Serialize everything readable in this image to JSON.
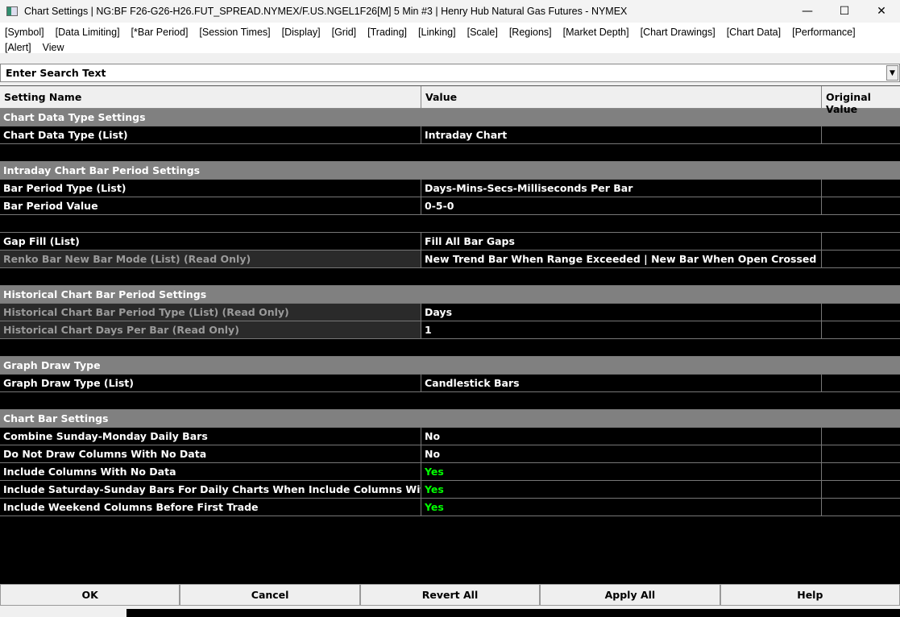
{
  "window": {
    "title": "Chart Settings | NG:BF F26-G26-H26.FUT_SPREAD.NYMEX/F.US.NGEL1F26[M]  5 Min  #3 | Henry Hub Natural Gas Futures - NYMEX",
    "minimize": "—",
    "maximize": "☐",
    "close": "✕"
  },
  "menu": [
    "[Symbol]",
    "[Data Limiting]",
    "[*Bar Period]",
    "[Session Times]",
    "[Display]",
    "[Grid]",
    "[Trading]",
    "[Linking]",
    "[Scale]",
    "[Regions]",
    "[Market Depth]",
    "[Chart Drawings]",
    "[Chart Data]",
    "[Performance]",
    "[Alert]",
    "View"
  ],
  "search": {
    "placeholder": "Enter Search Text",
    "dropdown": "▼"
  },
  "columns": {
    "name": "Setting Name",
    "value": "Value",
    "original": "Original Value"
  },
  "rows": [
    {
      "type": "section",
      "name": "Chart Data Type Settings"
    },
    {
      "type": "item",
      "name": "Chart Data Type (List)",
      "value": "Intraday Chart"
    },
    {
      "type": "blank"
    },
    {
      "type": "section",
      "name": "Intraday Chart Bar Period Settings"
    },
    {
      "type": "item",
      "name": "Bar Period Type (List)",
      "value": "Days-Mins-Secs-Milliseconds Per Bar"
    },
    {
      "type": "item",
      "name": "Bar Period Value",
      "value": "0-5-0"
    },
    {
      "type": "blank"
    },
    {
      "type": "item",
      "name": "Gap Fill (List)",
      "value": "Fill All Bar Gaps"
    },
    {
      "type": "readonly",
      "name": "Renko Bar New Bar Mode (List) (Read Only)",
      "value": "New Trend Bar When Range Exceeded | New Bar When Open Crossed"
    },
    {
      "type": "blank"
    },
    {
      "type": "section",
      "name": "Historical Chart Bar Period Settings"
    },
    {
      "type": "readonly",
      "name": "Historical Chart Bar Period Type (List) (Read Only)",
      "value": "Days"
    },
    {
      "type": "readonly",
      "name": "Historical Chart Days Per Bar (Read Only)",
      "value": "1"
    },
    {
      "type": "blank"
    },
    {
      "type": "section",
      "name": "Graph Draw Type"
    },
    {
      "type": "item",
      "name": "Graph Draw Type (List)",
      "value": "Candlestick Bars"
    },
    {
      "type": "blank"
    },
    {
      "type": "section",
      "name": "Chart Bar Settings"
    },
    {
      "type": "item",
      "name": "Combine Sunday-Monday Daily Bars",
      "value": "No"
    },
    {
      "type": "item",
      "name": "Do Not Draw Columns With No Data",
      "value": "No"
    },
    {
      "type": "item",
      "name": "Include Columns With No Data",
      "value": "Yes",
      "color": "#00ff00"
    },
    {
      "type": "item",
      "name": "Include Saturday-Sunday Bars For Daily Charts When Include Columns With No Data",
      "value": "Yes",
      "color": "#00ff00"
    },
    {
      "type": "item",
      "name": "Include Weekend Columns Before First Trade",
      "value": "Yes",
      "color": "#00ff00"
    }
  ],
  "buttons": [
    "OK",
    "Cancel",
    "Revert All",
    "Apply All",
    "Help"
  ]
}
